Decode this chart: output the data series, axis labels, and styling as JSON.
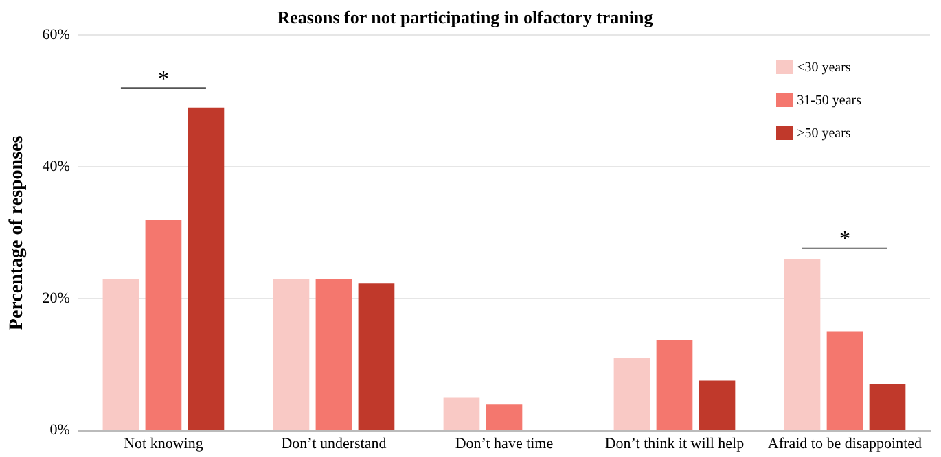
{
  "chart_data": {
    "type": "bar",
    "title": "Reasons for not participating in olfactory traning",
    "ylabel": "Percentage of responses",
    "categories": [
      "Not knowing",
      "Don’t understand",
      "Don’t have time",
      "Don’t think it will help",
      "Afraid to be disappointed"
    ],
    "series": [
      {
        "name": "<30 years",
        "color": "#f9c9c5",
        "values": [
          23,
          23,
          5,
          11,
          26
        ]
      },
      {
        "name": "31-50 years",
        "color": "#f4776e",
        "values": [
          32,
          23,
          4,
          13.8,
          15
        ]
      },
      {
        "name": ">50 years",
        "color": "#c0392b",
        "values": [
          49,
          22.3,
          0,
          7.6,
          7.1
        ]
      }
    ],
    "ylim": [
      0,
      60
    ],
    "yticks": [
      {
        "value": 0,
        "label": "0%"
      },
      {
        "value": 20,
        "label": "20%"
      },
      {
        "value": 40,
        "label": "40%"
      },
      {
        "value": 60,
        "label": "60%"
      }
    ],
    "grid": "y",
    "legend": "top right",
    "annotations": [
      "*",
      "*"
    ]
  }
}
